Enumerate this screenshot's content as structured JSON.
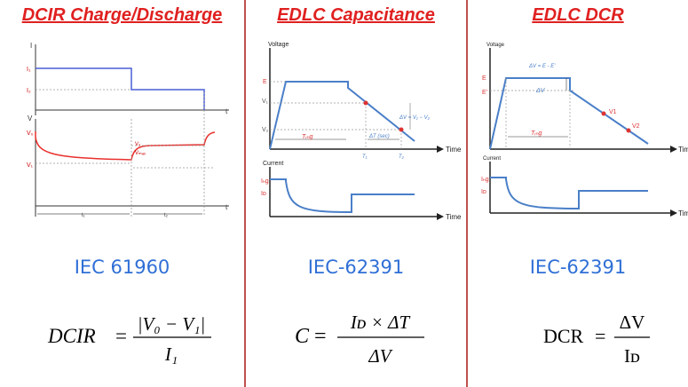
{
  "panels": [
    {
      "title": "DCIR Charge/Discharge",
      "standard": "IEC 61960",
      "diagram_labels": {
        "current_axis": "I",
        "voltage_axis": "V",
        "time_axis": "t",
        "i1": "I₁",
        "i2": "I₂",
        "v0": "V₀",
        "v2": "V₂",
        "vmax": "Vₘₐₓ",
        "v1": "V₁",
        "t1": "t₁",
        "t2": "t₂"
      },
      "formula": {
        "lhs": "DCIR",
        "numerator": "|V₀ − V₁|",
        "denominator": "I₁"
      }
    },
    {
      "title": "EDLC Capacitance",
      "standard": "IEC-62391",
      "diagram_labels": {
        "voltage_axis": "Voltage",
        "current_axis": "Current",
        "time_axis": "Time",
        "e": "E",
        "v1": "V₁",
        "v2": "V₂",
        "trchg": "Tᵣₕg",
        "delta_t": "ΔT (sec)",
        "delta_v": "ΔV = V₁ − V₂",
        "t1": "T₁",
        "t2": "T₂",
        "ichg": "Iₕg",
        "id": "Iᴅ"
      },
      "formula": {
        "lhs": "C",
        "numerator": "Iᴅ × ΔT",
        "denominator": "ΔV"
      }
    },
    {
      "title": "EDLC DCR",
      "standard": "IEC-62391",
      "diagram_labels": {
        "voltage_axis": "Voltage",
        "current_axis": "Current",
        "time_axis": "Tim",
        "delta_v_eq": "ΔV = E - E'",
        "e": "E",
        "e_prime": "E'",
        "delta_v": "ΔV",
        "v1": "V1",
        "v2": "V2",
        "trchg": "Tᵣₕg",
        "ichg": "Iₕg",
        "id": "Iᴅ"
      },
      "formula": {
        "lhs": "DCR",
        "numerator": "ΔV",
        "denominator": "Iᴅ"
      }
    }
  ]
}
